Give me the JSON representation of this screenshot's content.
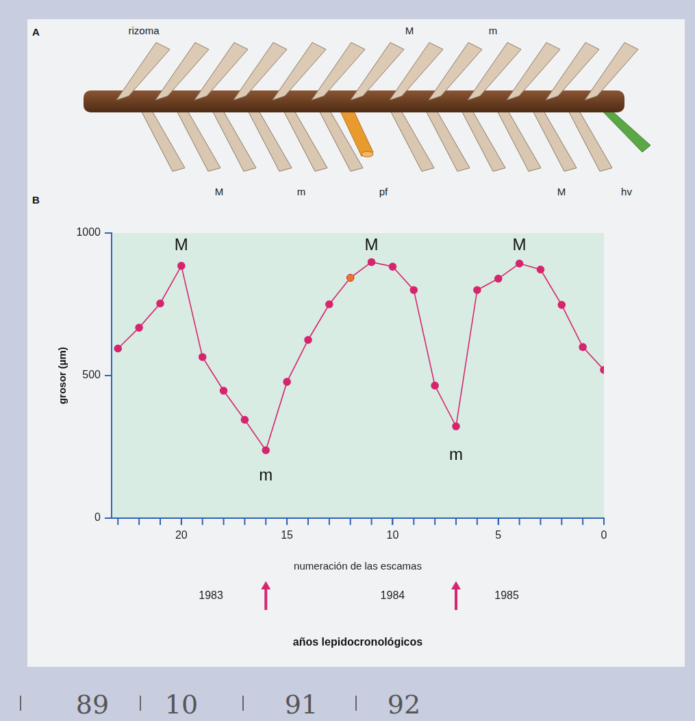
{
  "panel_a": {
    "letter": "A",
    "top_labels": [
      "rizoma",
      "M",
      "m"
    ],
    "bottom_labels": [
      "M",
      "m",
      "pf",
      "M",
      "hv"
    ]
  },
  "chart_data": {
    "letter": "B",
    "type": "line",
    "y_label": "grosor (µm)",
    "x_label": "numeración de las escamas",
    "x": [
      23,
      22,
      21,
      20,
      19,
      18,
      17,
      16,
      15,
      14,
      13,
      12,
      11,
      10,
      9,
      8,
      7,
      6,
      5,
      4,
      3,
      2,
      1,
      0
    ],
    "series": [
      {
        "name": "grosor",
        "color": "#d6246e",
        "marker": "circle",
        "line_style": "solid",
        "values": [
          595,
          668,
          753,
          885,
          565,
          447,
          345,
          238,
          478,
          625,
          750,
          843,
          898,
          882,
          800,
          465,
          322,
          800,
          840,
          893,
          872,
          748,
          600,
          520
        ]
      },
      {
        "name": "pf",
        "type": "scatter",
        "color": "#e8781e",
        "marker": "square",
        "x": [
          12
        ],
        "values": [
          843
        ]
      }
    ],
    "xlim": [
      23.3,
      0
    ],
    "xticks": [
      20,
      15,
      10,
      5,
      0
    ],
    "ylim": [
      0,
      1000
    ],
    "yticks": [
      0,
      500,
      1000
    ],
    "grid": false,
    "annotations": [
      {
        "text": "M",
        "x": 20,
        "y": 955
      },
      {
        "text": "m",
        "x": 16,
        "y": 147
      },
      {
        "text": "M",
        "x": 11,
        "y": 955
      },
      {
        "text": "m",
        "x": 7,
        "y": 220
      },
      {
        "text": "M",
        "x": 4,
        "y": 955
      }
    ],
    "period_labels": [
      {
        "text": "1983",
        "x": 18.6
      },
      {
        "text": "1984",
        "x": 10
      },
      {
        "text": "1985",
        "x": 4.6
      }
    ],
    "period_boundaries": [
      16,
      7
    ],
    "period_title": "años lepidocronológicos"
  },
  "footer": [
    "89",
    "10",
    "91",
    "92"
  ]
}
